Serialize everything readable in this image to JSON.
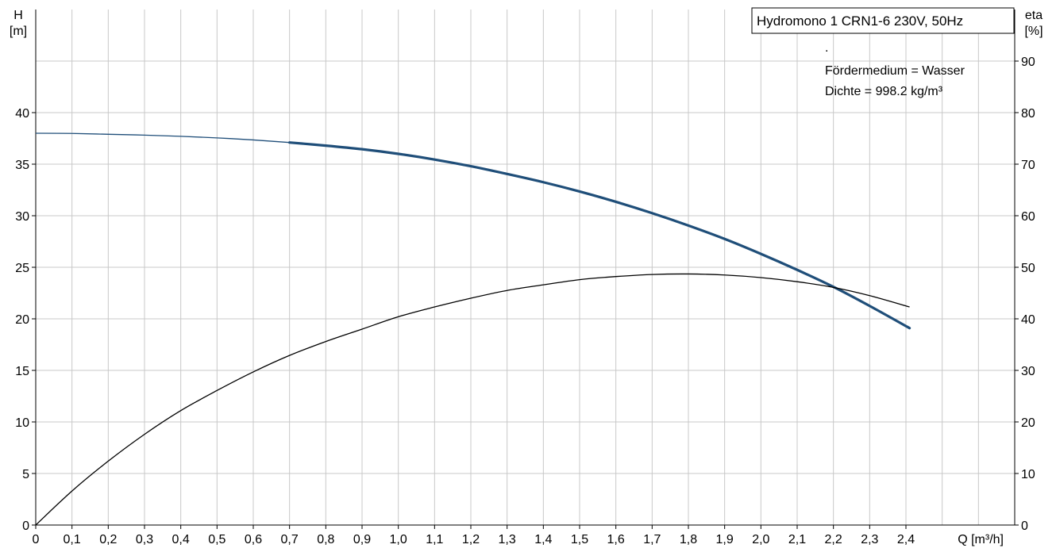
{
  "chart_data": {
    "type": "line",
    "title": "Hydromono 1 CRN1-6 230V, 50Hz",
    "annotations": [
      ".",
      "Fördermedium = Wasser",
      "Dichte = 998.2 kg/m³"
    ],
    "xlabel": "Q [m³/h]",
    "y_left_label": {
      "line1": "H",
      "line2": "[m]"
    },
    "y_right_label": {
      "line1": "eta",
      "line2": "[%]"
    },
    "x_ticks": [
      0,
      0.1,
      0.2,
      0.3,
      0.4,
      0.5,
      0.6,
      0.7,
      0.8,
      0.9,
      1.0,
      1.1,
      1.2,
      1.3,
      1.4,
      1.5,
      1.6,
      1.7,
      1.8,
      1.9,
      2.0,
      2.1,
      2.2,
      2.3,
      2.4
    ],
    "x_tick_labels": [
      "0",
      "0,1",
      "0,2",
      "0,3",
      "0,4",
      "0,5",
      "0,6",
      "0,7",
      "0,8",
      "0,9",
      "1,0",
      "1,1",
      "1,2",
      "1,3",
      "1,4",
      "1,5",
      "1,6",
      "1,7",
      "1,8",
      "1,9",
      "2,0",
      "2,1",
      "2,2",
      "2,3",
      "2,4"
    ],
    "xlim": [
      0,
      2.7
    ],
    "y_left_ticks": [
      0,
      5,
      10,
      15,
      20,
      25,
      30,
      35,
      40
    ],
    "y_left_tick_labels": [
      "0",
      "5",
      "10",
      "15",
      "20",
      "25",
      "30",
      "35",
      "40"
    ],
    "ylim_left": [
      0,
      50
    ],
    "y_right_ticks": [
      0,
      10,
      20,
      30,
      40,
      50,
      60,
      70,
      80,
      90
    ],
    "y_right_tick_labels": [
      "0",
      "10",
      "20",
      "30",
      "40",
      "50",
      "60",
      "70",
      "80",
      "90"
    ],
    "ylim_right": [
      0,
      100
    ],
    "grid": true,
    "series": [
      {
        "axis": "left",
        "color": "#1f4e79",
        "x": [
          0,
          0.1,
          0.2,
          0.3,
          0.4,
          0.5,
          0.6,
          0.7,
          0.8,
          0.9,
          1.0,
          1.1,
          1.2,
          1.3,
          1.4,
          1.5,
          1.6,
          1.7,
          1.8,
          1.9,
          2.0,
          2.1,
          2.2,
          2.3,
          2.41
        ],
        "y": [
          38.0,
          37.98,
          37.9,
          37.82,
          37.7,
          37.55,
          37.35,
          37.1,
          36.8,
          36.45,
          36.0,
          35.45,
          34.8,
          34.05,
          33.25,
          32.35,
          31.35,
          30.25,
          29.05,
          27.75,
          26.3,
          24.75,
          23.1,
          21.25,
          19.1
        ],
        "highlight_from": 0.7
      },
      {
        "axis": "right",
        "color": "#000000",
        "x": [
          0,
          0.1,
          0.2,
          0.3,
          0.4,
          0.5,
          0.6,
          0.7,
          0.8,
          0.9,
          1.0,
          1.1,
          1.2,
          1.3,
          1.4,
          1.5,
          1.6,
          1.7,
          1.8,
          1.9,
          2.0,
          2.1,
          2.2,
          2.3,
          2.41
        ],
        "y": [
          0,
          6.6,
          12.4,
          17.6,
          22.2,
          26.1,
          29.7,
          32.9,
          35.6,
          38.0,
          40.4,
          42.3,
          44.0,
          45.5,
          46.6,
          47.6,
          48.2,
          48.6,
          48.7,
          48.5,
          48.0,
          47.2,
          46.1,
          44.5,
          42.3
        ]
      }
    ]
  }
}
